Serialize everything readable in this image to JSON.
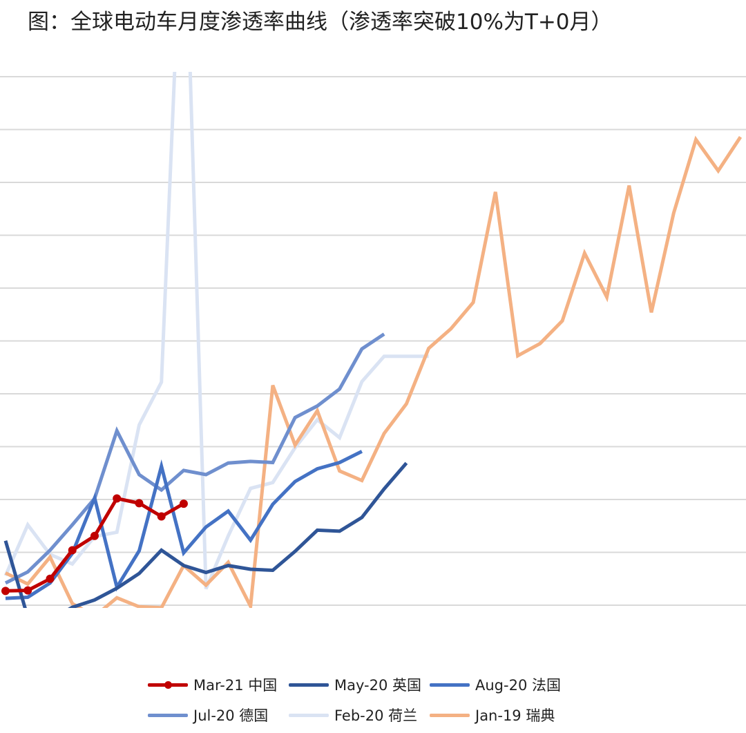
{
  "chart_data": {
    "type": "line",
    "title": "图：全球电动车月度渗透率曲线（渗透率突破10%为T+0月）",
    "xlabel": "",
    "ylabel": "",
    "x_range": [
      0,
      34
    ],
    "y_range": [
      0,
      100
    ],
    "y_gridlines": [
      0,
      10,
      20,
      30,
      40,
      50,
      60,
      70,
      80,
      90,
      100
    ],
    "grid": "horizontal",
    "legend_position": "bottom",
    "series": [
      {
        "name": "Mar-21 中国",
        "color": "#c00000",
        "markers": true,
        "x": [
          0,
          1,
          2,
          3,
          4,
          5,
          6,
          7,
          8
        ],
        "y": [
          2.7,
          2.8,
          5,
          10.4,
          13.1,
          20.2,
          19.3,
          16.8,
          19.2
        ]
      },
      {
        "name": "May-20 英国",
        "color": "#2f5597",
        "markers": false,
        "x": [
          0,
          1,
          2,
          3,
          4,
          5,
          6,
          7,
          8,
          9,
          10,
          11,
          12,
          13,
          14,
          15,
          16,
          17,
          18
        ],
        "y": [
          12.2,
          -2.3,
          -2.8,
          -0.4,
          1,
          3.2,
          6,
          10.4,
          7.5,
          6.2,
          7.5,
          6.8,
          6.6,
          10.2,
          14.2,
          14,
          16.6,
          22,
          26.9
        ]
      },
      {
        "name": "Aug-20 法国",
        "color": "#4472c4",
        "markers": false,
        "x": [
          0,
          1,
          2,
          3,
          4,
          5,
          6,
          7,
          8,
          9,
          10,
          11,
          12,
          13,
          14,
          15,
          16
        ],
        "y": [
          1.3,
          1.5,
          4.2,
          9.8,
          20.3,
          3.4,
          10.3,
          26.3,
          9.9,
          14.8,
          17.8,
          12.3,
          19.1,
          23.4,
          25.8,
          27,
          29.1
        ]
      },
      {
        "name": "Jul-20 德国",
        "color": "#6f8fce",
        "markers": false,
        "x": [
          0,
          1,
          2,
          3,
          4,
          5,
          6,
          7,
          8,
          9,
          10,
          11,
          12,
          13,
          14,
          15,
          16,
          17
        ],
        "y": [
          4.2,
          6.3,
          10.4,
          15.2,
          20.2,
          33,
          24.7,
          21.8,
          25.5,
          24.7,
          26.9,
          27.2,
          27,
          35.5,
          37.7,
          40.9,
          48.5,
          51.3
        ]
      },
      {
        "name": "Feb-20 荷兰",
        "color": "#dae3f3",
        "markers": false,
        "x": [
          0,
          1,
          2,
          3,
          4,
          5,
          6,
          7,
          8,
          9,
          10,
          11,
          12,
          13,
          14,
          15,
          16,
          17,
          18,
          19
        ],
        "y": [
          5.6,
          15.2,
          9.6,
          7.8,
          13,
          13.8,
          34.1,
          42.2,
          141.3,
          3.1,
          13.1,
          22.1,
          23.2,
          29.8,
          35.1,
          31.7,
          42.3,
          47.1,
          47.1,
          47.1
        ]
      },
      {
        "name": "Jan-19 瑞典",
        "color": "#f4b183",
        "markers": false,
        "x": [
          0,
          1,
          2,
          3,
          4,
          5,
          6,
          7,
          8,
          9,
          10,
          11,
          12,
          13,
          14,
          15,
          16,
          17,
          18,
          19,
          20,
          21,
          22,
          23,
          24,
          25,
          26,
          27,
          28,
          29,
          30,
          31,
          32,
          33
        ],
        "y": [
          6.1,
          4,
          9.1,
          0.3,
          -2.1,
          1.4,
          -0.3,
          -0.5,
          7.5,
          3.8,
          8.1,
          -0.2,
          41.6,
          30.3,
          36.8,
          25.4,
          23.6,
          32.5,
          38.1,
          48.6,
          52.3,
          57.3,
          78.2,
          47.2,
          49.5,
          53.8,
          66.6,
          58.3,
          79.4,
          55.4,
          74.2,
          88.1,
          82.2,
          88.6
        ]
      }
    ]
  }
}
